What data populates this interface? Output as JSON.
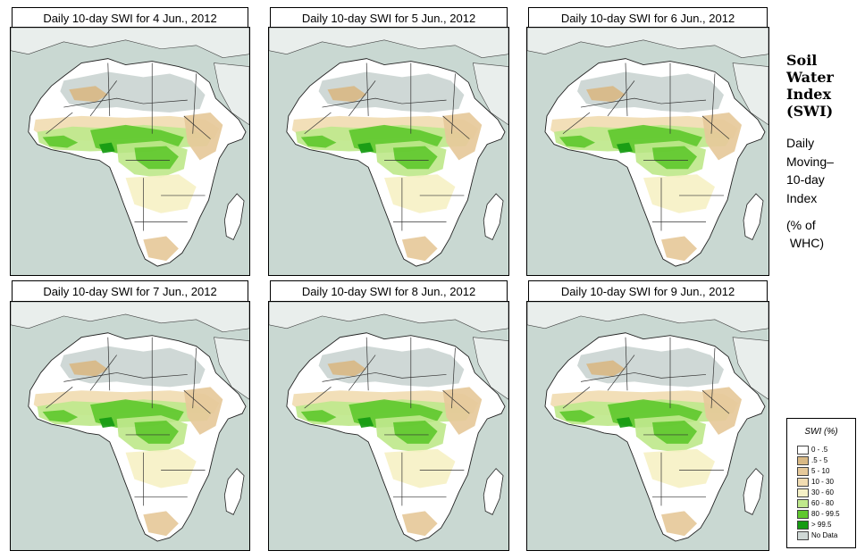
{
  "panels": [
    {
      "title": "Daily 10-day SWI for  4 Jun., 2012"
    },
    {
      "title": "Daily 10-day SWI for  5 Jun., 2012"
    },
    {
      "title": "Daily 10-day SWI for  6 Jun., 2012"
    },
    {
      "title": "Daily 10-day SWI for  7 Jun., 2012"
    },
    {
      "title": "Daily 10-day SWI for  8 Jun., 2012"
    },
    {
      "title": "Daily 10-day SWI for  9 Jun., 2012"
    }
  ],
  "sidebar": {
    "title_lines": [
      "Soil",
      "Water",
      "Index",
      "(SWI)"
    ],
    "sub_lines": [
      "Daily",
      "Moving–",
      "10-day",
      "Index"
    ],
    "unit_lines": [
      "(% of",
      " WHC)"
    ]
  },
  "legend": {
    "title": "SWI (%)",
    "items": [
      {
        "label": "0 - .5",
        "color": "#ffffff"
      },
      {
        "label": ".5 - 5",
        "color": "#d9b985"
      },
      {
        "label": "5 - 10",
        "color": "#e6c99a"
      },
      {
        "label": "10 - 30",
        "color": "#f1dcb2"
      },
      {
        "label": "30 - 60",
        "color": "#f6f1c6"
      },
      {
        "label": "60 - 80",
        "color": "#bfe88c"
      },
      {
        "label": "80 - 99.5",
        "color": "#5fc82e"
      },
      {
        "label": "> 99.5",
        "color": "#159a12"
      },
      {
        "label": "No Data",
        "color": "#cfd8d6"
      }
    ]
  },
  "colors": {
    "ocean": "#c9d8d2",
    "land": "#ffffff",
    "sahara": "#cfd8d6"
  }
}
